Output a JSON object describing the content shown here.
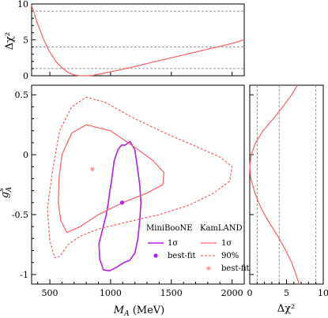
{
  "chart_data": [
    {
      "panel": "top",
      "type": "line",
      "ylabel": "Δχ²",
      "xlim": [
        350,
        2100
      ],
      "ylim": [
        0,
        10
      ],
      "yticks": [
        0,
        5,
        10
      ],
      "reference_lines": [
        1,
        4,
        9
      ],
      "series": [
        {
          "name": "KamLAND",
          "color": "#f56b6b",
          "points": [
            [
              350,
              9.8
            ],
            [
              400,
              7.2
            ],
            [
              450,
              5.0
            ],
            [
              500,
              3.3
            ],
            [
              550,
              2.0
            ],
            [
              600,
              1.1
            ],
            [
              650,
              0.45
            ],
            [
              700,
              0.12
            ],
            [
              750,
              0.0
            ],
            [
              800,
              0.0
            ],
            [
              850,
              0.05
            ],
            [
              900,
              0.2
            ],
            [
              1000,
              0.55
            ],
            [
              1100,
              0.9
            ],
            [
              1200,
              1.3
            ],
            [
              1300,
              1.7
            ],
            [
              1400,
              2.1
            ],
            [
              1500,
              2.5
            ],
            [
              1600,
              2.9
            ],
            [
              1700,
              3.3
            ],
            [
              1800,
              3.7
            ],
            [
              1900,
              4.1
            ],
            [
              2000,
              4.5
            ],
            [
              2100,
              5.0
            ]
          ]
        }
      ]
    },
    {
      "panel": "main",
      "type": "line",
      "xlabel": "M_A (MeV)",
      "ylabel": "g^s_A",
      "xlim": [
        350,
        2100
      ],
      "ylim": [
        -1.08,
        0.58
      ],
      "xticks": [
        500,
        1000,
        1500,
        2000
      ],
      "yticks": [
        -1,
        -0.5,
        0,
        0.5
      ],
      "series": [
        {
          "name": "MiniBooNE 1σ",
          "color": "#b41fe3",
          "closed": true,
          "points": [
            [
              1120,
              0.08
            ],
            [
              1160,
              0.11
            ],
            [
              1200,
              0.04
            ],
            [
              1220,
              -0.1
            ],
            [
              1240,
              -0.25
            ],
            [
              1250,
              -0.4
            ],
            [
              1240,
              -0.55
            ],
            [
              1225,
              -0.7
            ],
            [
              1200,
              -0.82
            ],
            [
              1160,
              -0.88
            ],
            [
              1110,
              -0.9
            ],
            [
              1050,
              -0.94
            ],
            [
              990,
              -0.97
            ],
            [
              940,
              -0.96
            ],
            [
              910,
              -0.87
            ],
            [
              905,
              -0.74
            ],
            [
              935,
              -0.62
            ],
            [
              965,
              -0.5
            ],
            [
              980,
              -0.41
            ],
            [
              995,
              -0.3
            ],
            [
              1010,
              -0.2
            ],
            [
              1030,
              -0.05
            ],
            [
              1060,
              0.04
            ],
            [
              1090,
              0.08
            ]
          ]
        },
        {
          "name": "KamLAND 1σ",
          "color": "#f56b6b",
          "closed": true,
          "points": [
            [
              600,
              0.0
            ],
            [
              680,
              0.18
            ],
            [
              800,
              0.25
            ],
            [
              1000,
              0.2
            ],
            [
              1200,
              0.06
            ],
            [
              1350,
              -0.05
            ],
            [
              1440,
              -0.15
            ],
            [
              1430,
              -0.25
            ],
            [
              1300,
              -0.32
            ],
            [
              1100,
              -0.4
            ],
            [
              900,
              -0.5
            ],
            [
              750,
              -0.6
            ],
            [
              640,
              -0.65
            ],
            [
              590,
              -0.55
            ],
            [
              570,
              -0.4
            ],
            [
              575,
              -0.2
            ]
          ]
        },
        {
          "name": "KamLAND 90%",
          "color": "#f56b6b",
          "dashed": true,
          "closed": true,
          "points": [
            [
              480,
              -0.45
            ],
            [
              520,
              -0.15
            ],
            [
              580,
              0.2
            ],
            [
              680,
              0.4
            ],
            [
              800,
              0.48
            ],
            [
              950,
              0.44
            ],
            [
              1200,
              0.3
            ],
            [
              1450,
              0.18
            ],
            [
              1700,
              0.07
            ],
            [
              1900,
              -0.02
            ],
            [
              2000,
              -0.1
            ],
            [
              1980,
              -0.22
            ],
            [
              1850,
              -0.32
            ],
            [
              1650,
              -0.42
            ],
            [
              1400,
              -0.5
            ],
            [
              1100,
              -0.57
            ],
            [
              900,
              -0.62
            ],
            [
              750,
              -0.68
            ],
            [
              650,
              -0.75
            ],
            [
              580,
              -0.85
            ],
            [
              540,
              -0.86
            ],
            [
              500,
              -0.72
            ]
          ]
        }
      ],
      "best_fit": [
        {
          "name": "MiniBooNE best-fit",
          "color": "#b41fe3",
          "x": 1095,
          "y": -0.4
        },
        {
          "name": "KamLAND best-fit",
          "color": "#f7a29c",
          "x": 850,
          "y": -0.12
        }
      ]
    },
    {
      "panel": "right",
      "type": "line",
      "xlabel": "Δχ²",
      "xlim": [
        0,
        10
      ],
      "ylim": [
        -1.08,
        0.58
      ],
      "xticks": [
        0,
        5,
        10
      ],
      "reference_lines": [
        1,
        4,
        9
      ],
      "series": [
        {
          "name": "KamLAND",
          "color": "#f56b6b",
          "points": [
            [
              6.5,
              0.58
            ],
            [
              5.7,
              0.5
            ],
            [
              4.5,
              0.4
            ],
            [
              3.2,
              0.3
            ],
            [
              1.8,
              0.2
            ],
            [
              0.8,
              0.1
            ],
            [
              0.2,
              0.0
            ],
            [
              0.0,
              -0.1
            ],
            [
              0.15,
              -0.2
            ],
            [
              0.6,
              -0.3
            ],
            [
              1.2,
              -0.4
            ],
            [
              2.0,
              -0.5
            ],
            [
              3.0,
              -0.6
            ],
            [
              4.0,
              -0.7
            ],
            [
              4.9,
              -0.8
            ],
            [
              5.7,
              -0.9
            ],
            [
              6.3,
              -1.0
            ],
            [
              6.7,
              -1.08
            ]
          ]
        }
      ]
    }
  ],
  "legend": {
    "miniboone": {
      "title": "MiniBooNE",
      "items": [
        {
          "label": "1σ",
          "color": "#b41fe3",
          "kind": "line"
        },
        {
          "label": "best-fit",
          "color": "#b41fe3",
          "kind": "dot"
        }
      ]
    },
    "kamland": {
      "title": "KamLAND",
      "items": [
        {
          "label": "1σ",
          "color": "#f56b6b",
          "kind": "line"
        },
        {
          "label": "90%",
          "color": "#f56b6b",
          "kind": "dash"
        },
        {
          "label": "best-fit",
          "color": "#f7a29c",
          "kind": "dot"
        }
      ]
    }
  },
  "labels": {
    "top_ylabel": "Δχ²",
    "main_ylabel": "g",
    "main_ylabel_sup": "s",
    "main_ylabel_sub": "A",
    "main_xlabel_var": "M",
    "main_xlabel_sub": "A",
    "main_xlabel_unit": " (MeV)",
    "right_xlabel": "Δχ²"
  }
}
